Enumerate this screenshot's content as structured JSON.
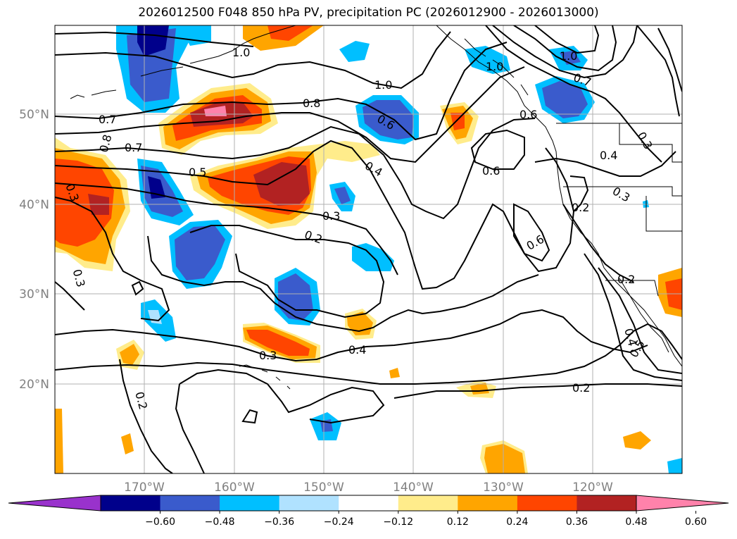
{
  "title": "2026012500 F048 850 hPa PV, precipitation PC (2026012900 - 2026013000)",
  "lat_labels": [
    "50°N",
    "40°N",
    "30°N",
    "20°N"
  ],
  "lon_labels": [
    "170°W",
    "160°W",
    "150°W",
    "140°W",
    "130°W",
    "120°W"
  ],
  "colorbar": {
    "ticks": [
      "−0.60",
      "−0.48",
      "−0.36",
      "−0.24",
      "−0.12",
      "0.12",
      "0.24",
      "0.36",
      "0.48",
      "0.60"
    ],
    "colors": [
      "#9932cc",
      "#00008b",
      "#3a5bcc",
      "#00bfff",
      "#b0e2ff",
      "#ffffff",
      "#ffec8b",
      "#ffa500",
      "#ff4500",
      "#b22222",
      "#ff82ab"
    ]
  },
  "contour_labels": [
    "1.0",
    "1.0",
    "1.0",
    "1.0",
    "0.8",
    "0.7",
    "0.7",
    "0.8",
    "0.6",
    "0.6",
    "0.6",
    "0.4",
    "0.4",
    "0.4",
    "0.4",
    "0.5",
    "0.5",
    "0.3",
    "0.3",
    "0.3",
    "0.3",
    "0.3",
    "0.3",
    "0.2",
    "0.2",
    "0.2",
    "0.2",
    "0.2",
    "0.6",
    "0.7"
  ]
}
